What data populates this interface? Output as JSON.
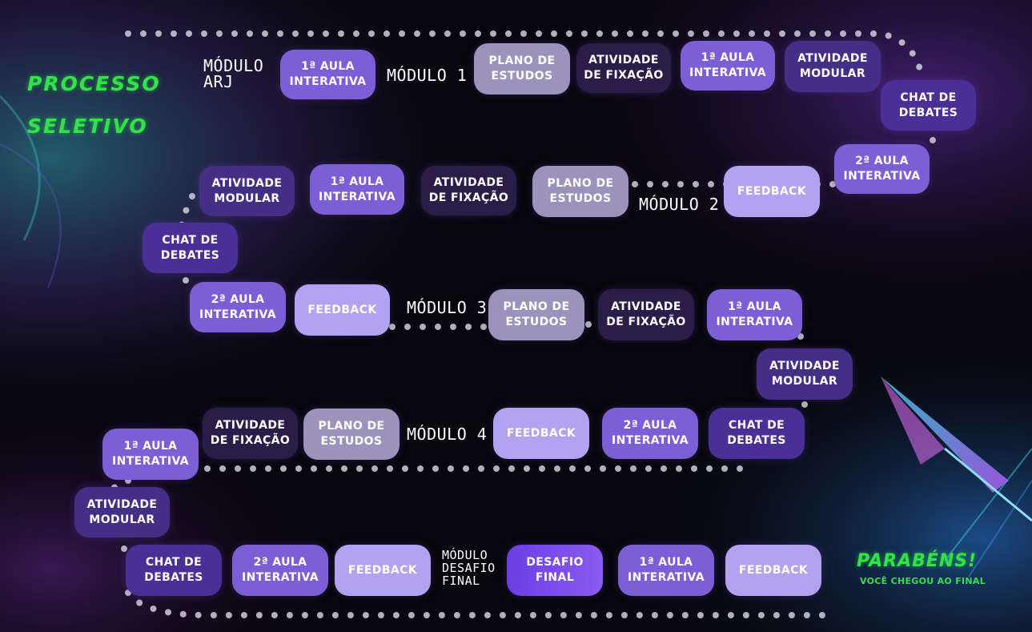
{
  "title": {
    "line1": "PROCESSO",
    "line2": "SELETIVO"
  },
  "modules": {
    "arj": "MÓDULO\nARJ",
    "m1": "MÓDULO 1",
    "m2": "MÓDULO 2",
    "m3": "MÓDULO 3",
    "m4": "MÓDULO 4",
    "final": "MÓDULO\nDESAFIO\nFINAL"
  },
  "steps": {
    "arj_aula1": "1ª AULA\nINTERATIVA",
    "m1_plano": "PLANO DE\nESTUDOS",
    "m1_fix": "ATIVIDADE\nDE FIXAÇÃO",
    "m1_aula1": "1ª AULA\nINTERATIVA",
    "m1_modular": "ATIVIDADE\nMODULAR",
    "m1_chat": "CHAT DE\nDEBATES",
    "m1_aula2": "2ª AULA\nINTERATIVA",
    "m2_feedback": "FEEDBACK",
    "m2_plano": "PLANO DE\nESTUDOS",
    "m2_fix": "ATIVIDADE\nDE FIXAÇÃO",
    "m2_aula1": "1ª AULA\nINTERATIVA",
    "m2_modular": "ATIVIDADE\nMODULAR",
    "m2_chat": "CHAT DE\nDEBATES",
    "m2_aula2": "2ª AULA\nINTERATIVA",
    "m3_feedback": "FEEDBACK",
    "m3_plano": "PLANO DE\nESTUDOS",
    "m3_fix": "ATIVIDADE\nDE FIXAÇÃO",
    "m3_aula1": "1ª AULA\nINTERATIVA",
    "m3_modular": "ATIVIDADE\nMODULAR",
    "m3_chat": "CHAT DE\nDEBATES",
    "m3_aula2": "2ª AULA\nINTERATIVA",
    "m4_feedback": "FEEDBACK",
    "m4_plano": "PLANO DE\nESTUDOS",
    "m4_fix": "ATIVIDADE\nDE FIXAÇÃO",
    "m4_aula1": "1ª AULA\nINTERATIVA",
    "m4_modular": "ATIVIDADE\nMODULAR",
    "m4_chat": "CHAT DE\nDEBATES",
    "m4_aula2": "2ª AULA\nINTERATIVA",
    "m4_feedback2": "FEEDBACK",
    "final_desafio": "DESAFIO\nFINAL",
    "final_aula1": "1ª AULA\nINTERATIVA",
    "final_feedback": "FEEDBACK"
  },
  "ending": {
    "congrats": "PARABÉNS!",
    "subtitle": "VOCÊ CHEGOU AO FINAL"
  },
  "colors": {
    "title_green": "#33e24a",
    "aula": "#7c5fd6",
    "plano": "#9c93bd",
    "fixacao": "#2a1d4a",
    "modular": "#452f86",
    "chat": "#4a2f96",
    "feedback": "#b3a2f0",
    "desafio": "#7a4cf0"
  },
  "icons": {
    "arrow": "arrow-icon"
  }
}
